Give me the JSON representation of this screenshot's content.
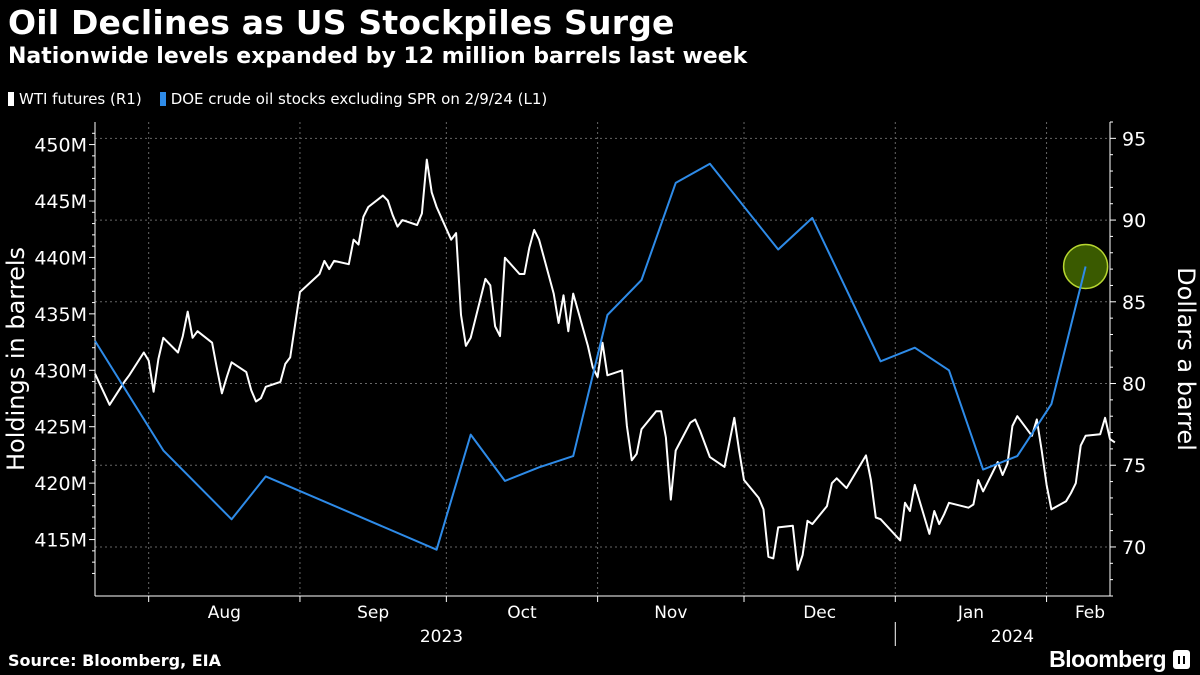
{
  "title": "Oil Declines as US Stockpiles Surge",
  "subtitle": "Nationwide levels expanded by 12 million barrels last week",
  "source": "Source: Bloomberg, EIA",
  "brand": "Bloomberg",
  "colors": {
    "background": "#000000",
    "wti": "#ffffff",
    "stocks": "#2e8be8",
    "highlight": "#3a5a00",
    "highlight_ring": "#b7d630"
  },
  "chart_data": {
    "type": "line",
    "legend_placement": "top-left",
    "grid": true,
    "left_axis": {
      "label": "Holdings in barrels",
      "range": [
        410000000,
        452000000
      ],
      "ticks": [
        415000000,
        420000000,
        425000000,
        430000000,
        435000000,
        440000000,
        445000000,
        450000000
      ],
      "tick_labels": [
        "415M",
        "420M",
        "425M",
        "430M",
        "435M",
        "440M",
        "445M",
        "450M"
      ]
    },
    "right_axis": {
      "label": "Dollars a barrel",
      "range": [
        67,
        96
      ],
      "ticks": [
        70,
        75,
        80,
        85,
        90,
        95
      ],
      "tick_labels": [
        "70",
        "75",
        "80",
        "85",
        "90",
        "95"
      ]
    },
    "x_axis": {
      "range": [
        "2023-07-21",
        "2024-02-14"
      ],
      "month_ticks": [
        "2023-07-01",
        "2023-08-01",
        "2023-09-01",
        "2023-10-01",
        "2023-11-01",
        "2023-12-01",
        "2024-01-01",
        "2024-02-01"
      ],
      "month_labels": [
        {
          "label": "Aug",
          "date": "2023-08-01"
        },
        {
          "label": "Sep",
          "date": "2023-09-01"
        },
        {
          "label": "Oct",
          "date": "2023-10-01"
        },
        {
          "label": "Nov",
          "date": "2023-11-01"
        },
        {
          "label": "Dec",
          "date": "2023-12-01"
        },
        {
          "label": "Jan",
          "date": "2024-01-01"
        },
        {
          "label": "Feb",
          "date": "2024-02-01"
        }
      ],
      "year_labels": [
        {
          "label": "2023",
          "date": "2023-09-30"
        },
        {
          "label": "2024",
          "date": "2024-01-25"
        }
      ],
      "year_divider": "2024-01-01"
    },
    "series": [
      {
        "name": "WTI futures (R1)",
        "axis": "right",
        "color": "#ffffff",
        "points": [
          [
            "2023-07-21",
            80.6
          ],
          [
            "2023-07-24",
            78.7
          ],
          [
            "2023-07-27",
            80.1
          ],
          [
            "2023-07-28",
            80.5
          ],
          [
            "2023-07-31",
            81.9
          ],
          [
            "2023-08-01",
            81.4
          ],
          [
            "2023-08-02",
            79.5
          ],
          [
            "2023-08-03",
            81.5
          ],
          [
            "2023-08-04",
            82.8
          ],
          [
            "2023-08-07",
            81.9
          ],
          [
            "2023-08-08",
            82.9
          ],
          [
            "2023-08-09",
            84.4
          ],
          [
            "2023-08-10",
            82.8
          ],
          [
            "2023-08-11",
            83.2
          ],
          [
            "2023-08-14",
            82.5
          ],
          [
            "2023-08-15",
            80.9
          ],
          [
            "2023-08-16",
            79.4
          ],
          [
            "2023-08-17",
            80.4
          ],
          [
            "2023-08-18",
            81.3
          ],
          [
            "2023-08-21",
            80.7
          ],
          [
            "2023-08-22",
            79.6
          ],
          [
            "2023-08-23",
            78.9
          ],
          [
            "2023-08-24",
            79.1
          ],
          [
            "2023-08-25",
            79.8
          ],
          [
            "2023-08-28",
            80.1
          ],
          [
            "2023-08-29",
            81.2
          ],
          [
            "2023-08-30",
            81.6
          ],
          [
            "2023-08-31",
            83.6
          ],
          [
            "2023-09-01",
            85.6
          ],
          [
            "2023-09-05",
            86.7
          ],
          [
            "2023-09-06",
            87.5
          ],
          [
            "2023-09-07",
            87.0
          ],
          [
            "2023-09-08",
            87.5
          ],
          [
            "2023-09-11",
            87.3
          ],
          [
            "2023-09-12",
            88.8
          ],
          [
            "2023-09-13",
            88.5
          ],
          [
            "2023-09-14",
            90.2
          ],
          [
            "2023-09-15",
            90.8
          ],
          [
            "2023-09-18",
            91.5
          ],
          [
            "2023-09-19",
            91.2
          ],
          [
            "2023-09-20",
            90.3
          ],
          [
            "2023-09-21",
            89.6
          ],
          [
            "2023-09-22",
            90.0
          ],
          [
            "2023-09-25",
            89.7
          ],
          [
            "2023-09-26",
            90.4
          ],
          [
            "2023-09-27",
            93.7
          ],
          [
            "2023-09-28",
            91.7
          ],
          [
            "2023-09-29",
            90.8
          ],
          [
            "2023-10-02",
            88.8
          ],
          [
            "2023-10-03",
            89.2
          ],
          [
            "2023-10-04",
            84.2
          ],
          [
            "2023-10-05",
            82.3
          ],
          [
            "2023-10-06",
            82.8
          ],
          [
            "2023-10-09",
            86.4
          ],
          [
            "2023-10-10",
            86.0
          ],
          [
            "2023-10-11",
            83.5
          ],
          [
            "2023-10-12",
            82.9
          ],
          [
            "2023-10-13",
            87.7
          ],
          [
            "2023-10-16",
            86.7
          ],
          [
            "2023-10-17",
            86.7
          ],
          [
            "2023-10-18",
            88.3
          ],
          [
            "2023-10-19",
            89.4
          ],
          [
            "2023-10-20",
            88.8
          ],
          [
            "2023-10-23",
            85.5
          ],
          [
            "2023-10-24",
            83.7
          ],
          [
            "2023-10-25",
            85.4
          ],
          [
            "2023-10-26",
            83.2
          ],
          [
            "2023-10-27",
            85.5
          ],
          [
            "2023-10-30",
            82.3
          ],
          [
            "2023-10-31",
            81.0
          ],
          [
            "2023-11-01",
            80.4
          ],
          [
            "2023-11-02",
            82.5
          ],
          [
            "2023-11-03",
            80.5
          ],
          [
            "2023-11-06",
            80.8
          ],
          [
            "2023-11-07",
            77.4
          ],
          [
            "2023-11-08",
            75.3
          ],
          [
            "2023-11-09",
            75.7
          ],
          [
            "2023-11-10",
            77.2
          ],
          [
            "2023-11-13",
            78.3
          ],
          [
            "2023-11-14",
            78.3
          ],
          [
            "2023-11-15",
            76.7
          ],
          [
            "2023-11-16",
            72.9
          ],
          [
            "2023-11-17",
            75.9
          ],
          [
            "2023-11-20",
            77.6
          ],
          [
            "2023-11-21",
            77.8
          ],
          [
            "2023-11-22",
            77.1
          ],
          [
            "2023-11-24",
            75.5
          ],
          [
            "2023-11-27",
            74.9
          ],
          [
            "2023-11-28",
            76.4
          ],
          [
            "2023-11-29",
            77.9
          ],
          [
            "2023-11-30",
            75.9
          ],
          [
            "2023-12-01",
            74.1
          ],
          [
            "2023-12-04",
            73.0
          ],
          [
            "2023-12-05",
            72.3
          ],
          [
            "2023-12-06",
            69.4
          ],
          [
            "2023-12-07",
            69.3
          ],
          [
            "2023-12-08",
            71.2
          ],
          [
            "2023-12-11",
            71.3
          ],
          [
            "2023-12-12",
            68.6
          ],
          [
            "2023-12-13",
            69.5
          ],
          [
            "2023-12-14",
            71.6
          ],
          [
            "2023-12-15",
            71.4
          ],
          [
            "2023-12-18",
            72.5
          ],
          [
            "2023-12-19",
            73.9
          ],
          [
            "2023-12-20",
            74.2
          ],
          [
            "2023-12-21",
            73.9
          ],
          [
            "2023-12-22",
            73.6
          ],
          [
            "2023-12-26",
            75.6
          ],
          [
            "2023-12-27",
            74.1
          ],
          [
            "2023-12-28",
            71.8
          ],
          [
            "2023-12-29",
            71.7
          ],
          [
            "2024-01-02",
            70.4
          ],
          [
            "2024-01-03",
            72.7
          ],
          [
            "2024-01-04",
            72.2
          ],
          [
            "2024-01-05",
            73.8
          ],
          [
            "2024-01-08",
            70.8
          ],
          [
            "2024-01-09",
            72.2
          ],
          [
            "2024-01-10",
            71.4
          ],
          [
            "2024-01-11",
            72.0
          ],
          [
            "2024-01-12",
            72.7
          ],
          [
            "2024-01-16",
            72.4
          ],
          [
            "2024-01-17",
            72.6
          ],
          [
            "2024-01-18",
            74.1
          ],
          [
            "2024-01-19",
            73.4
          ],
          [
            "2024-01-22",
            75.2
          ],
          [
            "2024-01-23",
            74.4
          ],
          [
            "2024-01-24",
            75.1
          ],
          [
            "2024-01-25",
            77.4
          ],
          [
            "2024-01-26",
            78.0
          ],
          [
            "2024-01-29",
            76.8
          ],
          [
            "2024-01-30",
            77.8
          ],
          [
            "2024-01-31",
            75.9
          ],
          [
            "2024-02-01",
            73.8
          ],
          [
            "2024-02-02",
            72.3
          ],
          [
            "2024-02-05",
            72.8
          ],
          [
            "2024-02-06",
            73.3
          ],
          [
            "2024-02-07",
            73.9
          ],
          [
            "2024-02-08",
            76.2
          ],
          [
            "2024-02-09",
            76.8
          ],
          [
            "2024-02-12",
            76.9
          ],
          [
            "2024-02-13",
            77.9
          ],
          [
            "2024-02-14",
            76.6
          ],
          [
            "2024-02-15",
            76.4
          ]
        ]
      },
      {
        "name": "DOE crude oil stocks excluding SPR on 2/9/24 (L1)",
        "axis": "left",
        "color": "#2e8be8",
        "points": [
          [
            "2023-07-21",
            432600000
          ],
          [
            "2023-08-04",
            422900000
          ],
          [
            "2023-08-18",
            416800000
          ],
          [
            "2023-08-25",
            420600000
          ],
          [
            "2023-09-29",
            414100000
          ],
          [
            "2023-10-06",
            424300000
          ],
          [
            "2023-10-13",
            420200000
          ],
          [
            "2023-10-20",
            421400000
          ],
          [
            "2023-10-27",
            422400000
          ],
          [
            "2023-11-03",
            434900000
          ],
          [
            "2023-11-10",
            438000000
          ],
          [
            "2023-11-17",
            446600000
          ],
          [
            "2023-11-24",
            448300000
          ],
          [
            "2023-12-08",
            440700000
          ],
          [
            "2023-12-15",
            443500000
          ],
          [
            "2023-12-29",
            430800000
          ],
          [
            "2024-01-05",
            432000000
          ],
          [
            "2024-01-12",
            430000000
          ],
          [
            "2024-01-19",
            421200000
          ],
          [
            "2024-01-26",
            422400000
          ],
          [
            "2024-02-02",
            427000000
          ],
          [
            "2024-02-09",
            439200000
          ]
        ]
      }
    ],
    "highlight": {
      "series": "DOE crude oil stocks excluding SPR on 2/9/24 (L1)",
      "date": "2024-02-09",
      "value": 439200000
    }
  }
}
